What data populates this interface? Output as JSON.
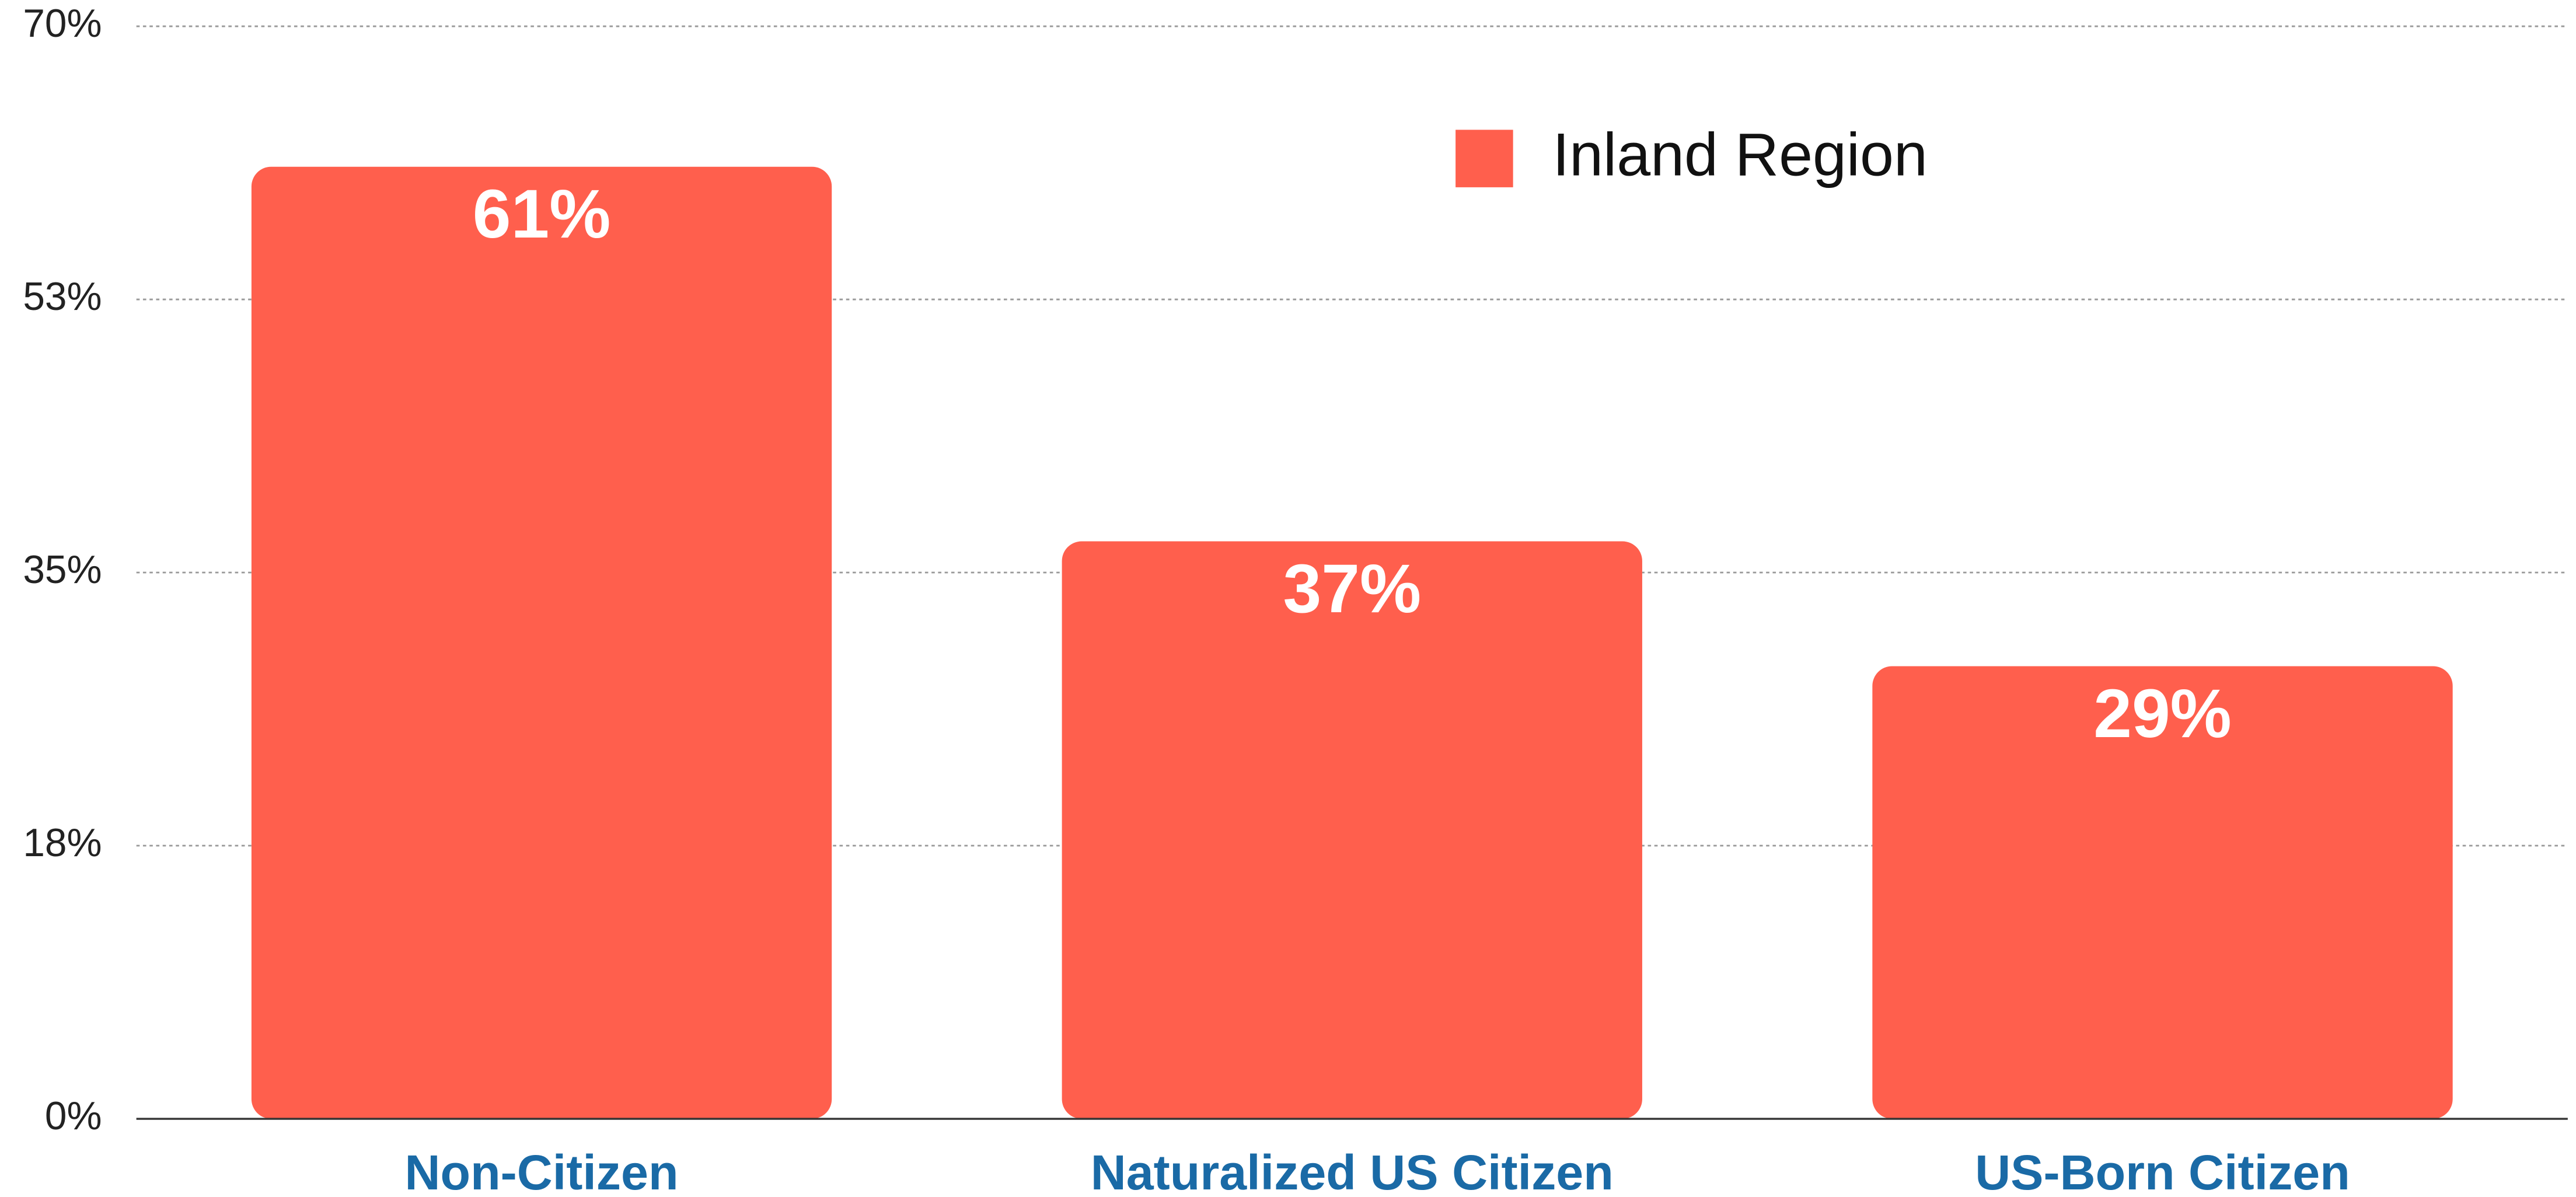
{
  "chart_data": {
    "type": "bar",
    "categories": [
      "Non-Citizen",
      "Naturalized US Citizen",
      "US-Born Citizen"
    ],
    "series": [
      {
        "name": "Inland Region",
        "color": "#ff5f4d",
        "values": [
          61,
          37,
          29
        ],
        "value_labels": [
          "61%",
          "37%",
          "29%"
        ]
      }
    ],
    "ylim": [
      0,
      70
    ],
    "yticks": [
      {
        "value": 0,
        "label": "0%"
      },
      {
        "value": 17.5,
        "label": "18%"
      },
      {
        "value": 35,
        "label": "35%"
      },
      {
        "value": 52.5,
        "label": "53%"
      },
      {
        "value": 70,
        "label": "70%"
      }
    ],
    "grid": true,
    "legend": "top"
  }
}
